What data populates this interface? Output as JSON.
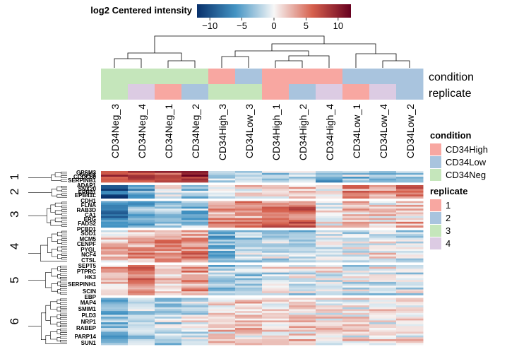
{
  "chart_data": {
    "type": "heatmap",
    "colorbar": {
      "title": "log2 Centered intensity",
      "range": [
        -12,
        12
      ],
      "ticks": [
        -10,
        -5,
        0,
        5,
        10
      ],
      "tick_labels": [
        "−10",
        "−5",
        "0",
        "5",
        "10"
      ],
      "colors": {
        "low": "#08306b",
        "low_mid": "#4393c3",
        "mid": "#f7f7f7",
        "high_mid": "#d6604d",
        "high": "#67001f"
      }
    },
    "columns": [
      "CD34Neg_3",
      "CD34Neg_4",
      "CD34Neg_1",
      "CD34Neg_2",
      "CD34High_3",
      "CD34Low_3",
      "CD34High_1",
      "CD34High_2",
      "CD34High_4",
      "CD34Low_1",
      "CD34Low_4",
      "CD34Low_2"
    ],
    "column_condition": [
      "CD34Neg",
      "CD34Neg",
      "CD34Neg",
      "CD34Neg",
      "CD34High",
      "CD34Low",
      "CD34High",
      "CD34High",
      "CD34High",
      "CD34Low",
      "CD34Low",
      "CD34Low"
    ],
    "column_replicate": [
      "3",
      "4",
      "1",
      "2",
      "3",
      "3",
      "1",
      "2",
      "4",
      "1",
      "4",
      "2"
    ],
    "annotation_row_labels": [
      "condition",
      "replicate"
    ],
    "legends": {
      "condition": {
        "title": "condition",
        "items": [
          {
            "label": "CD34High",
            "color": "#f8a7a1"
          },
          {
            "label": "CD34Low",
            "color": "#a9c4de"
          },
          {
            "label": "CD34Neg",
            "color": "#c5e6bb"
          }
        ]
      },
      "replicate": {
        "title": "replicate",
        "items": [
          {
            "label": "1",
            "color": "#f8a7a1"
          },
          {
            "label": "2",
            "color": "#a9c4de"
          },
          {
            "label": "3",
            "color": "#c5e6bb"
          },
          {
            "label": "4",
            "color": "#dccbe3"
          }
        ]
      }
    },
    "row_clusters": [
      {
        "label": "1",
        "rows": 6,
        "profile": [
          7,
          8,
          7,
          9,
          -3,
          -2,
          -2,
          -1,
          -4,
          -3,
          -3,
          -3
        ]
      },
      {
        "label": "2",
        "rows": 7,
        "profile": [
          -9,
          -6,
          -1,
          -3,
          0,
          1,
          1,
          2,
          0,
          5,
          4,
          5
        ]
      },
      {
        "label": "3",
        "rows": 14,
        "profile": [
          -7,
          -5,
          -3,
          -4,
          3,
          4,
          4,
          5,
          0,
          2,
          1,
          2
        ]
      },
      {
        "label": "4",
        "rows": 17,
        "profile": [
          2,
          3,
          4,
          4,
          -4,
          -2,
          -1,
          -2,
          -1,
          -1,
          0,
          -1
        ]
      },
      {
        "label": "5",
        "rows": 16,
        "profile": [
          2,
          4,
          1,
          3,
          -3,
          -3,
          -1,
          -1,
          -1,
          -1,
          -1,
          -1
        ]
      },
      {
        "label": "6",
        "rows": 25,
        "profile": [
          -3,
          -2,
          -2,
          -1,
          2,
          2,
          1,
          2,
          1,
          1,
          1,
          1
        ]
      }
    ],
    "row_labels_visible": [
      "GPSM3",
      "OGG1",
      "CCDC68",
      "SERPINB1",
      "ADAP1",
      "SNX20",
      "EPB41",
      "EPB41L",
      "CDH1",
      "FLNA",
      "RAB3D",
      "CA1",
      "ERG",
      "FADS2",
      "PCBD1",
      "SOD1",
      "MCM5",
      "CENPF",
      "PYGL",
      "NCF4",
      "CTSL",
      "SEPT5",
      "PTPRC",
      "HK3",
      "SERPINH1",
      "SCIN",
      "EBP",
      "MAP4",
      "SMIM1",
      "PLD3",
      "NRP1",
      "RABEP",
      "PARP14",
      "SUN1"
    ]
  }
}
